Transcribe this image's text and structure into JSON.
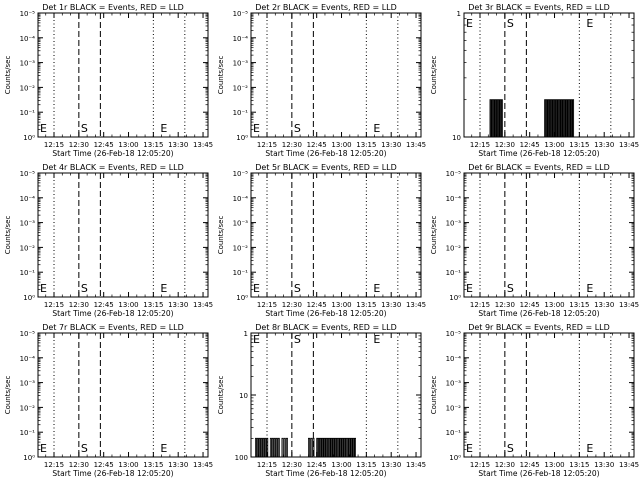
{
  "chart_data": [
    {
      "type": "line",
      "title": "Det 1r BLACK = Events, RED = LLD",
      "xlabel": "Start Time (26-Feb-18 12:05:20)",
      "ylabel": "Counts/sec",
      "yscale": "log",
      "y_ticks": [
        "10⁰",
        "10⁻¹",
        "10⁻²",
        "10⁻³",
        "10⁻⁴",
        "10⁻⁵"
      ],
      "x_ticks": [
        "12:15",
        "12:30",
        "12:45",
        "13:00",
        "13:15",
        "13:30",
        "13:45"
      ],
      "markers": [
        {
          "label": "E",
          "time": "12:05"
        },
        {
          "label": "S",
          "time": "12:30"
        },
        {
          "label": "E",
          "time": "13:18"
        }
      ],
      "series": []
    },
    {
      "type": "line",
      "title": "Det 2r BLACK = Events, RED = LLD",
      "xlabel": "Start Time (26-Feb-18 12:05:20)",
      "ylabel": "Counts/sec",
      "yscale": "log",
      "y_ticks": [
        "10⁰",
        "10⁻¹",
        "10⁻²",
        "10⁻³",
        "10⁻⁴",
        "10⁻⁵"
      ],
      "x_ticks": [
        "12:15",
        "12:30",
        "12:45",
        "13:00",
        "13:15",
        "13:30",
        "13:45"
      ],
      "markers": [
        {
          "label": "E",
          "time": "12:05"
        },
        {
          "label": "S",
          "time": "12:30"
        },
        {
          "label": "E",
          "time": "13:18"
        }
      ],
      "series": []
    },
    {
      "type": "line",
      "title": "Det 3r BLACK = Events, RED = LLD",
      "xlabel": "Start Time (26-Feb-18 12:05:20)",
      "ylabel": "Counts/sec",
      "yscale": "log",
      "y_ticks": [
        "10",
        "1"
      ],
      "x_ticks": [
        "12:15",
        "12:30",
        "12:45",
        "13:00",
        "13:15",
        "13:30",
        "13:45"
      ],
      "markers": [
        {
          "label": "E",
          "time": "12:05"
        },
        {
          "label": "S",
          "time": "12:30"
        },
        {
          "label": "E",
          "time": "13:18"
        }
      ],
      "series": [
        {
          "bursts": [
            {
              "start": "12:21",
              "end": "12:29",
              "count": 8
            },
            {
              "start": "12:54",
              "end": "13:12",
              "count": 18
            }
          ],
          "level": 2
        }
      ]
    },
    {
      "type": "line",
      "title": "Det 4r BLACK = Events, RED = LLD",
      "xlabel": "Start Time (26-Feb-18 12:05:20)",
      "ylabel": "Counts/sec",
      "yscale": "log",
      "y_ticks": [
        "10⁰",
        "10⁻¹",
        "10⁻²",
        "10⁻³",
        "10⁻⁴",
        "10⁻⁵"
      ],
      "x_ticks": [
        "12:15",
        "12:30",
        "12:45",
        "13:00",
        "13:15",
        "13:30",
        "13:45"
      ],
      "markers": [
        {
          "label": "E",
          "time": "12:05"
        },
        {
          "label": "S",
          "time": "12:30"
        },
        {
          "label": "E",
          "time": "13:18"
        }
      ],
      "series": []
    },
    {
      "type": "line",
      "title": "Det 5r BLACK = Events, RED = LLD",
      "xlabel": "Start Time (26-Feb-18 12:05:20)",
      "ylabel": "Counts/sec",
      "yscale": "log",
      "y_ticks": [
        "10⁰",
        "10⁻¹",
        "10⁻²",
        "10⁻³",
        "10⁻⁴",
        "10⁻⁵"
      ],
      "x_ticks": [
        "12:15",
        "12:30",
        "12:45",
        "13:00",
        "13:15",
        "13:30",
        "13:45"
      ],
      "markers": [
        {
          "label": "E",
          "time": "12:05"
        },
        {
          "label": "S",
          "time": "12:30"
        },
        {
          "label": "E",
          "time": "13:18"
        }
      ],
      "series": []
    },
    {
      "type": "line",
      "title": "Det 6r BLACK = Events, RED = LLD",
      "xlabel": "Start Time (26-Feb-18 12:05:20)",
      "ylabel": "Counts/sec",
      "yscale": "log",
      "y_ticks": [
        "10⁰",
        "10⁻¹",
        "10⁻²",
        "10⁻³",
        "10⁻⁴",
        "10⁻⁵"
      ],
      "x_ticks": [
        "12:15",
        "12:30",
        "12:45",
        "13:00",
        "13:15",
        "13:30",
        "13:45"
      ],
      "markers": [
        {
          "label": "E",
          "time": "12:05"
        },
        {
          "label": "S",
          "time": "12:30"
        },
        {
          "label": "E",
          "time": "13:18"
        }
      ],
      "series": []
    },
    {
      "type": "line",
      "title": "Det 7r BLACK = Events, RED = LLD",
      "xlabel": "Start Time (26-Feb-18 12:05:20)",
      "ylabel": "Counts/sec",
      "yscale": "log",
      "y_ticks": [
        "10⁰",
        "10⁻¹",
        "10⁻²",
        "10⁻³",
        "10⁻⁴",
        "10⁻⁵"
      ],
      "x_ticks": [
        "12:15",
        "12:30",
        "12:45",
        "13:00",
        "13:15",
        "13:30",
        "13:45"
      ],
      "markers": [
        {
          "label": "E",
          "time": "12:05"
        },
        {
          "label": "S",
          "time": "12:30"
        },
        {
          "label": "E",
          "time": "13:18"
        }
      ],
      "series": []
    },
    {
      "type": "line",
      "title": "Det 8r BLACK = Events, RED = LLD",
      "xlabel": "Start Time (26-Feb-18 12:05:20)",
      "ylabel": "Counts/sec",
      "yscale": "log",
      "y_ticks": [
        "100",
        "10",
        "1"
      ],
      "x_ticks": [
        "12:15",
        "12:30",
        "12:45",
        "13:00",
        "13:15",
        "13:30",
        "13:45"
      ],
      "markers": [
        {
          "label": "E",
          "time": "12:05"
        },
        {
          "label": "S",
          "time": "12:30"
        },
        {
          "label": "E",
          "time": "13:18"
        }
      ],
      "series": [
        {
          "bursts": [
            {
              "start": "12:08",
              "end": "12:16",
              "count": 7
            },
            {
              "start": "12:17",
              "end": "12:23",
              "count": 5
            },
            {
              "start": "12:24",
              "end": "12:28",
              "count": 3
            },
            {
              "start": "12:40",
              "end": "12:44",
              "count": 3
            },
            {
              "start": "12:45",
              "end": "13:09",
              "count": 22
            }
          ],
          "level": 2
        }
      ]
    },
    {
      "type": "line",
      "title": "Det 9r BLACK = Events, RED = LLD",
      "xlabel": "Start Time (26-Feb-18 12:05:20)",
      "ylabel": "Counts/sec",
      "yscale": "log",
      "y_ticks": [
        "10⁰",
        "10⁻¹",
        "10⁻²",
        "10⁻³",
        "10⁻⁴",
        "10⁻⁵"
      ],
      "x_ticks": [
        "12:15",
        "12:30",
        "12:45",
        "13:00",
        "13:15",
        "13:30",
        "13:45"
      ],
      "markers": [
        {
          "label": "E",
          "time": "12:05"
        },
        {
          "label": "S",
          "time": "12:30"
        },
        {
          "label": "E",
          "time": "13:18"
        }
      ],
      "series": []
    }
  ]
}
